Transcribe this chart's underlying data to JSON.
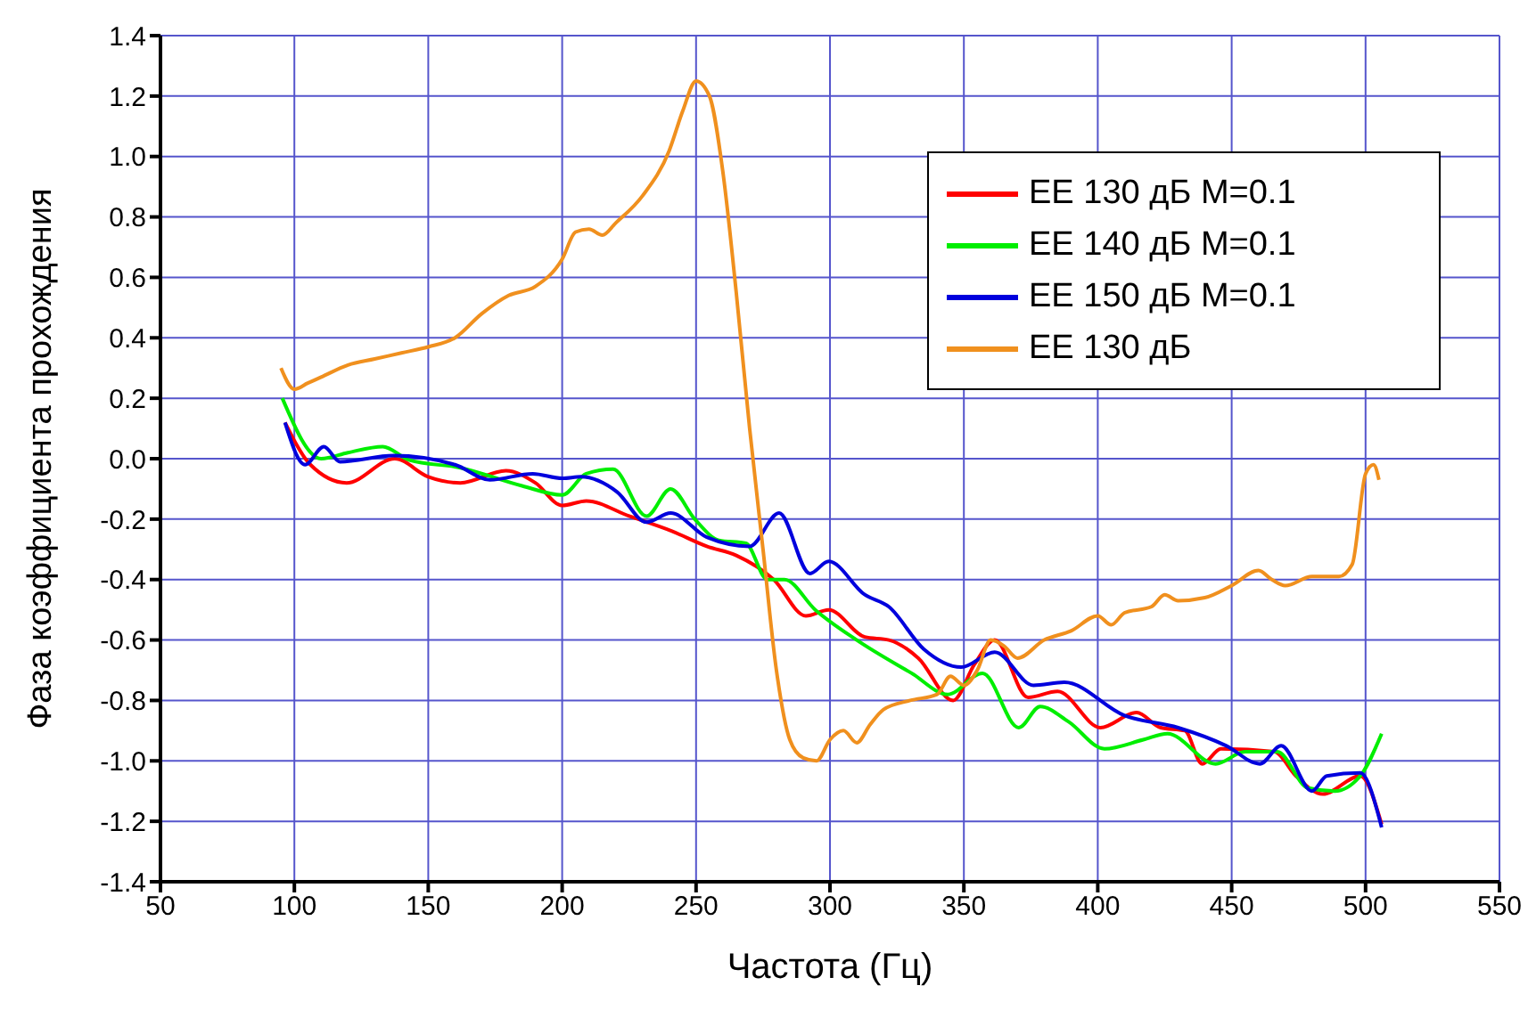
{
  "chart_data": {
    "type": "line",
    "xlabel": "Частота (Гц)",
    "ylabel": "Фаза коэффициента прохождения",
    "xlim": [
      50,
      550
    ],
    "xticks": [
      50,
      100,
      150,
      200,
      250,
      300,
      350,
      400,
      450,
      500,
      550
    ],
    "ylim": [
      -1.4,
      1.4
    ],
    "yticks": [
      {
        "value": -1.4,
        "label": "-1.4"
      },
      {
        "value": -1.2,
        "label": "-1.2"
      },
      {
        "value": -1.0,
        "label": "-1.0"
      },
      {
        "value": -0.8,
        "label": "-0.8"
      },
      {
        "value": -0.6,
        "label": "-0.6"
      },
      {
        "value": -0.4,
        "label": "-0.4"
      },
      {
        "value": -0.2,
        "label": "-0.2"
      },
      {
        "value": 0,
        "label": "0.0"
      },
      {
        "value": 0.2,
        "label": "0.2"
      },
      {
        "value": 0.4,
        "label": "0.4"
      },
      {
        "value": 0.6,
        "label": "0.6"
      },
      {
        "value": 0.8,
        "label": "0.8"
      },
      {
        "value": 1.0,
        "label": "1.0"
      },
      {
        "value": 1.2,
        "label": "1.2"
      },
      {
        "value": 1.4,
        "label": "1.4"
      }
    ],
    "grid": true,
    "legend": "top right",
    "marker": "none",
    "line_style": "solid",
    "series": [
      {
        "name": "EE 130 дБ M=0.1",
        "color": "#ff0000",
        "x": [
          96.5,
          106,
          119.5,
          137.5,
          150,
          162,
          179,
          190,
          200,
          209,
          225,
          241,
          254,
          265,
          279,
          291,
          299.5,
          313,
          322,
          333,
          346,
          354,
          361.5,
          374,
          385,
          401,
          414.5,
          423.5,
          432.5,
          439,
          446,
          466,
          474,
          484,
          498,
          506
        ],
        "values": [
          0.12,
          -0.02,
          -0.08,
          0.0,
          -0.06,
          -0.08,
          -0.04,
          -0.08,
          -0.155,
          -0.14,
          -0.19,
          -0.24,
          -0.29,
          -0.32,
          -0.4,
          -0.52,
          -0.5,
          -0.59,
          -0.6,
          -0.66,
          -0.8,
          -0.68,
          -0.6,
          -0.79,
          -0.77,
          -0.89,
          -0.84,
          -0.89,
          -0.9,
          -1.01,
          -0.96,
          -0.97,
          -1.05,
          -1.11,
          -1.05,
          -1.21
        ]
      },
      {
        "name": "EE 140 дБ M=0.1",
        "color": "#00ee00",
        "x": [
          95.5,
          110,
          120,
          133,
          143,
          162,
          185,
          200,
          209,
          219,
          231.5,
          240.5,
          249.5,
          258.5,
          268.6,
          276.6,
          283,
          294.5,
          310,
          330.5,
          344,
          357,
          370.5,
          378.5,
          389,
          402.5,
          417,
          426,
          444,
          455,
          467,
          478.5,
          488.5,
          498,
          506
        ],
        "values": [
          0.2,
          0.0,
          0.02,
          0.04,
          -0.005,
          -0.03,
          -0.09,
          -0.12,
          -0.05,
          -0.035,
          -0.19,
          -0.1,
          -0.2,
          -0.27,
          -0.28,
          -0.4,
          -0.4,
          -0.5,
          -0.6,
          -0.71,
          -0.78,
          -0.71,
          -0.89,
          -0.82,
          -0.87,
          -0.96,
          -0.93,
          -0.91,
          -1.01,
          -0.97,
          -0.97,
          -1.09,
          -1.1,
          -1.05,
          -0.91
        ]
      },
      {
        "name": "EE 150 дБ M=0.1",
        "color": "#0000dd",
        "x": [
          96.5,
          104,
          111,
          117,
          137,
          160,
          173,
          189,
          200,
          207,
          220.5,
          231.5,
          240.5,
          254,
          270,
          281,
          292.5,
          299.5,
          313,
          322,
          335,
          349,
          361.5,
          376,
          387.5,
          410,
          430,
          448,
          460.5,
          468.5,
          480,
          485.5,
          498,
          506
        ],
        "values": [
          0.12,
          -0.02,
          0.04,
          -0.01,
          0.01,
          -0.02,
          -0.07,
          -0.05,
          -0.065,
          -0.06,
          -0.11,
          -0.21,
          -0.18,
          -0.26,
          -0.29,
          -0.18,
          -0.38,
          -0.34,
          -0.45,
          -0.49,
          -0.63,
          -0.69,
          -0.64,
          -0.75,
          -0.74,
          -0.85,
          -0.89,
          -0.95,
          -1.01,
          -0.95,
          -1.1,
          -1.05,
          -1.04,
          -1.22
        ]
      },
      {
        "name": "EE 130 дБ",
        "color": "#f0901e",
        "x": [
          95,
          100,
          105,
          110,
          120,
          130,
          140,
          150,
          160,
          170,
          180,
          190,
          200,
          205,
          210,
          215,
          220,
          230,
          240,
          245,
          250,
          255,
          260,
          265,
          270,
          275,
          280,
          285,
          290,
          295,
          300,
          305,
          310,
          315,
          320,
          330,
          340,
          345,
          350,
          355,
          360,
          365,
          370,
          380,
          390,
          400,
          405,
          410,
          420,
          425,
          430,
          440,
          450,
          460,
          465,
          470,
          480,
          490,
          495,
          500,
          503,
          505
        ],
        "values": [
          0.3,
          0.23,
          0.25,
          0.27,
          0.31,
          0.33,
          0.35,
          0.37,
          0.4,
          0.48,
          0.54,
          0.57,
          0.66,
          0.75,
          0.76,
          0.74,
          0.78,
          0.87,
          1.02,
          1.15,
          1.25,
          1.2,
          0.95,
          0.55,
          0.1,
          -0.3,
          -0.7,
          -0.93,
          -0.99,
          -1.0,
          -0.93,
          -0.9,
          -0.94,
          -0.88,
          -0.83,
          -0.8,
          -0.78,
          -0.72,
          -0.75,
          -0.7,
          -0.6,
          -0.62,
          -0.66,
          -0.6,
          -0.57,
          -0.52,
          -0.55,
          -0.51,
          -0.49,
          -0.45,
          -0.47,
          -0.46,
          -0.42,
          -0.37,
          -0.4,
          -0.42,
          -0.39,
          -0.39,
          -0.35,
          -0.05,
          -0.02,
          -0.07
        ]
      }
    ]
  }
}
